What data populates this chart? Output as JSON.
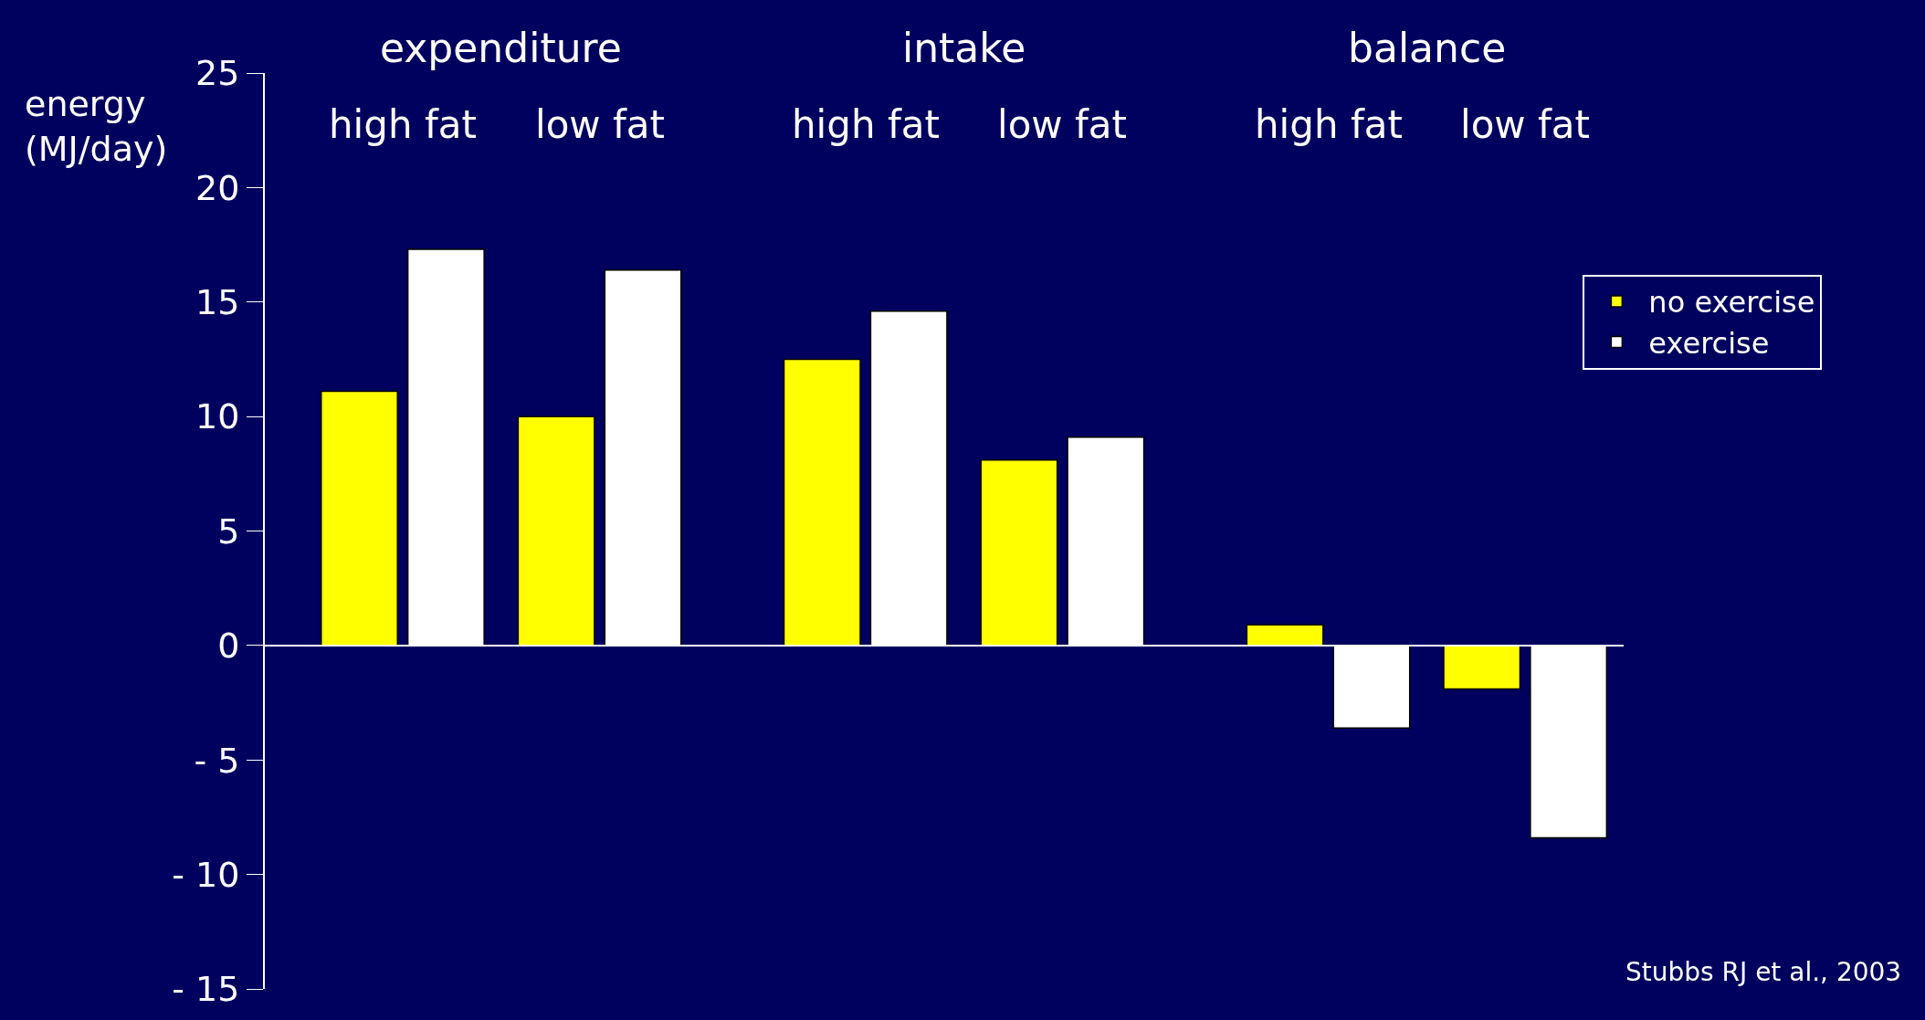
{
  "chart_data": {
    "type": "bar",
    "categories": [
      "high fat",
      "low fat",
      "high fat",
      "low fat",
      "high fat",
      "low fat"
    ],
    "series": [
      {
        "name": "no exercise",
        "color": "#ffff00",
        "values": [
          11.1,
          10.0,
          12.5,
          8.1,
          0.9,
          -1.9
        ]
      },
      {
        "name": "exercise",
        "color": "#ffffff",
        "values": [
          17.3,
          16.4,
          14.6,
          9.1,
          -3.6,
          -8.4
        ]
      }
    ],
    "ylabel": "energy\n(MJ/day)",
    "ylim": [
      -15,
      25
    ],
    "yticks": [
      {
        "value": -15,
        "label": "- 15"
      },
      {
        "value": -10,
        "label": "- 10"
      },
      {
        "value": -5,
        "label": "- 5"
      },
      0,
      5,
      10,
      15,
      20,
      25
    ],
    "annotations": [
      "expenditure",
      "intake",
      "balance",
      "Stubbs RJ et al., 2003"
    ],
    "ref_lines": [
      {
        "axis": "y",
        "value": 0,
        "color": "#ffffff"
      }
    ],
    "legend": "right",
    "grid": false
  }
}
